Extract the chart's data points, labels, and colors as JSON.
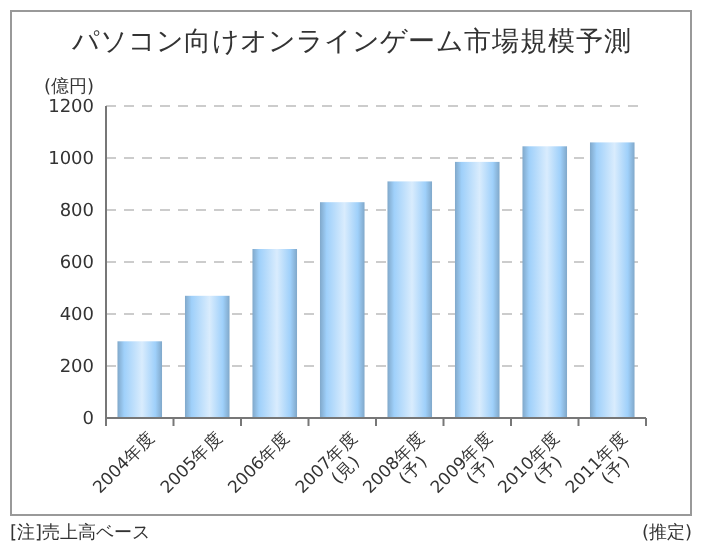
{
  "chart_data": {
    "type": "bar",
    "title": "パソコン向けオンラインゲーム市場規模予測",
    "ylabel": "(億円)",
    "categories": [
      "2004年度",
      "2005年度",
      "2006年度",
      "2007年度\n(見)",
      "2008年度\n(予)",
      "2009年度\n(予)",
      "2010年度\n(予)",
      "2011年度\n(予)"
    ],
    "values": [
      295,
      470,
      650,
      830,
      910,
      985,
      1045,
      1060
    ],
    "color": "#9fd0fa",
    "ylim": [
      0,
      1200
    ],
    "yticks": [
      0,
      200,
      400,
      600,
      800,
      1000,
      1200
    ],
    "grid": "y",
    "annotations": [
      "[注]売上高ベース",
      "(推定)"
    ]
  }
}
